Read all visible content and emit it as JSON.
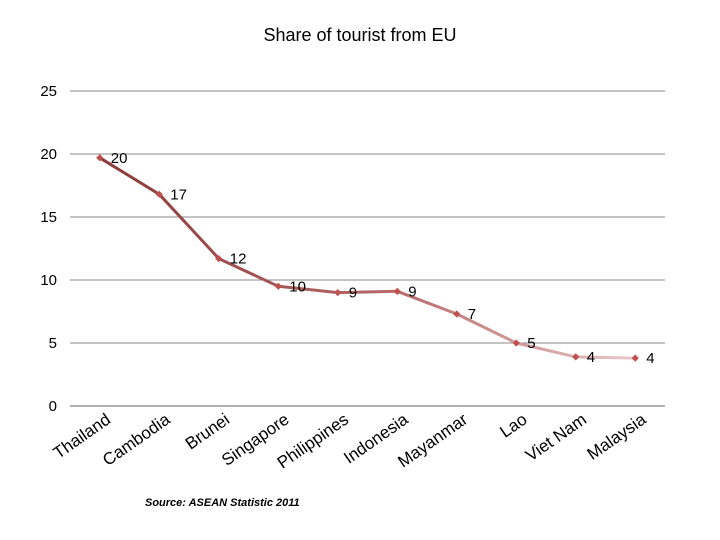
{
  "chart_data": {
    "type": "line",
    "title": "Share of tourist from EU",
    "categories": [
      "Thailand",
      "Cambodia",
      "Brunei",
      "Singapore",
      "Philippines",
      "Indonesia",
      "Mayanmar",
      "Lao",
      "Viet Nam",
      "Malaysia"
    ],
    "series": [
      {
        "values": [
          19.7,
          16.8,
          11.7,
          9.5,
          9.0,
          9.1,
          7.3,
          5.0,
          3.9,
          3.8
        ],
        "labels": [
          "20",
          "17",
          "12",
          "10",
          "9",
          "9",
          "7",
          "5",
          "4",
          "4"
        ]
      }
    ],
    "ylim": [
      0,
      25
    ],
    "yticks": [
      "0",
      "5",
      "10",
      "15",
      "20",
      "25"
    ],
    "grid": true,
    "legend": "none",
    "colors": {
      "line_start": "#8b3a3a",
      "line_end": "#e8c2c2",
      "marker": "#c0504d",
      "grid": "#888888"
    },
    "source": "Source: ASEAN Statistic  2011"
  }
}
